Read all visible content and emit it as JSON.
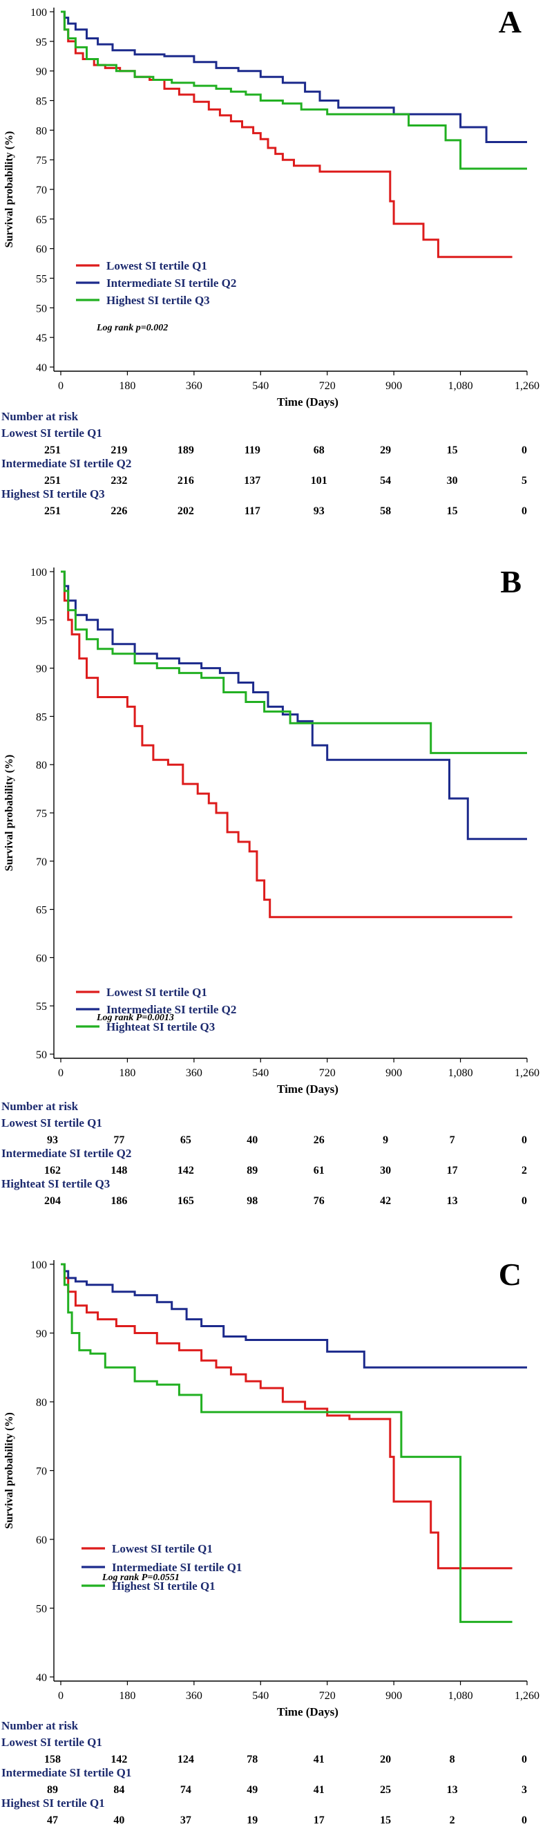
{
  "colors": {
    "low": "#dd1c1c",
    "mid": "#1c2a8c",
    "high": "#22b022",
    "navy": "#1c2a6e"
  },
  "chart_data": [
    {
      "type": "line",
      "panel_label": "A",
      "ylabel": "Survival probability (%)",
      "xlabel": "Time (Days)",
      "xlim": [
        0,
        1260
      ],
      "ylim": [
        40,
        100
      ],
      "xticks": [
        0,
        180,
        360,
        540,
        720,
        900,
        1080,
        1260
      ],
      "xtick_labels": [
        "0",
        "180",
        "360",
        "540",
        "720",
        "900",
        "1,080",
        "1,260"
      ],
      "yticks": [
        40,
        45,
        50,
        55,
        60,
        65,
        70,
        75,
        80,
        85,
        90,
        95,
        100
      ],
      "annotation": "Log rank p=0.002",
      "series": [
        {
          "name": "Lowest SI tertile Q1",
          "color_key": "low",
          "x": [
            0,
            10,
            20,
            40,
            60,
            90,
            120,
            160,
            200,
            240,
            280,
            320,
            360,
            400,
            430,
            460,
            490,
            520,
            540,
            560,
            580,
            600,
            630,
            660,
            700,
            750,
            800,
            850,
            880,
            890,
            900,
            950,
            980,
            1000,
            1020,
            1220
          ],
          "y": [
            100,
            97,
            95,
            93,
            92,
            91,
            90.5,
            90,
            89,
            88.5,
            87,
            86,
            84.8,
            83.5,
            82.5,
            81.5,
            80.5,
            79.5,
            78.5,
            77,
            76,
            75,
            74,
            74,
            73,
            73,
            73,
            73,
            73,
            68,
            64.2,
            64.2,
            61.5,
            61.5,
            58.6,
            58.6
          ]
        },
        {
          "name": "Intermediate SI tertile Q2",
          "color_key": "mid",
          "x": [
            0,
            10,
            20,
            40,
            70,
            100,
            140,
            200,
            280,
            360,
            420,
            480,
            540,
            600,
            660,
            700,
            750,
            900,
            1000,
            1080,
            1150,
            1260
          ],
          "y": [
            100,
            99,
            98,
            97,
            95.5,
            94.5,
            93.5,
            92.8,
            92.5,
            91.5,
            90.5,
            90,
            89,
            88,
            86.5,
            85,
            83.8,
            82.7,
            82.7,
            80.5,
            78,
            78
          ]
        },
        {
          "name": "Highest SI tertile Q3",
          "color_key": "high",
          "x": [
            0,
            10,
            20,
            40,
            70,
            100,
            150,
            200,
            250,
            300,
            360,
            420,
            460,
            500,
            540,
            600,
            650,
            720,
            800,
            900,
            940,
            1000,
            1040,
            1080,
            1260
          ],
          "y": [
            100,
            97,
            95.5,
            94,
            92,
            91,
            90,
            89,
            88.5,
            88,
            87.5,
            87,
            86.5,
            86,
            85,
            84.5,
            83.5,
            82.7,
            82.7,
            82.7,
            80.8,
            80.8,
            78.3,
            73.5,
            73.5
          ]
        }
      ],
      "risk_table": {
        "title": "Number at risk",
        "rows": [
          {
            "label": "Lowest SI tertile Q1",
            "values": [
              "251",
              "219",
              "189",
              "119",
              "68",
              "29",
              "15",
              "0"
            ]
          },
          {
            "label": "Intermediate SI tertile Q2",
            "values": [
              "251",
              "232",
              "216",
              "137",
              "101",
              "54",
              "30",
              "5"
            ]
          },
          {
            "label": "Highest SI tertile Q3",
            "values": [
              "251",
              "226",
              "202",
              "117",
              "93",
              "58",
              "15",
              "0"
            ]
          }
        ]
      }
    },
    {
      "type": "line",
      "panel_label": "B",
      "ylabel": "Survival probability (%)",
      "xlabel": "Time (Days)",
      "xlim": [
        0,
        1260
      ],
      "ylim": [
        50,
        100
      ],
      "xticks": [
        0,
        180,
        360,
        540,
        720,
        900,
        1080,
        1260
      ],
      "xtick_labels": [
        "0",
        "180",
        "360",
        "540",
        "720",
        "900",
        "1,080",
        "1,260"
      ],
      "yticks": [
        50,
        55,
        60,
        65,
        70,
        75,
        80,
        85,
        90,
        95,
        100
      ],
      "annotation": "Log rank P=0.0013",
      "series": [
        {
          "name": "Lowest SI tertile Q1",
          "color_key": "low",
          "x": [
            0,
            10,
            20,
            30,
            50,
            70,
            100,
            150,
            180,
            200,
            220,
            250,
            290,
            330,
            370,
            400,
            420,
            450,
            480,
            510,
            530,
            550,
            565,
            580,
            1220
          ],
          "y": [
            100,
            97,
            95,
            93.5,
            91,
            89,
            87,
            87,
            86,
            84,
            82,
            80.5,
            80,
            78,
            77,
            76,
            75,
            73,
            72,
            71,
            68,
            66,
            64.2,
            64.2,
            64.2
          ]
        },
        {
          "name": "Intermediate SI tertile Q2",
          "color_key": "mid",
          "x": [
            0,
            10,
            20,
            40,
            70,
            100,
            140,
            200,
            260,
            320,
            380,
            430,
            480,
            520,
            560,
            600,
            640,
            680,
            720,
            900,
            1000,
            1050,
            1080,
            1100,
            1260
          ],
          "y": [
            100,
            98.5,
            97,
            95.5,
            95,
            94,
            92.5,
            91.5,
            91,
            90.5,
            90,
            89.5,
            88.5,
            87.5,
            86,
            85.2,
            84.5,
            82,
            80.5,
            80.5,
            80.5,
            76.5,
            76.5,
            72.3,
            72.3
          ]
        },
        {
          "name": "Highteat SI tertile Q3",
          "color_key": "high",
          "x": [
            0,
            10,
            20,
            40,
            70,
            100,
            140,
            200,
            260,
            320,
            380,
            440,
            500,
            550,
            620,
            700,
            800,
            900,
            960,
            1000,
            1100,
            1260
          ],
          "y": [
            100,
            98,
            96,
            94,
            93,
            92,
            91.5,
            90.5,
            90,
            89.5,
            89,
            87.5,
            86.5,
            85.5,
            84.3,
            84.3,
            84.3,
            84.3,
            84.3,
            81.2,
            81.2,
            81.2
          ]
        }
      ],
      "risk_table": {
        "title": "Number at risk",
        "rows": [
          {
            "label": "Lowest SI tertile Q1",
            "values": [
              "93",
              "77",
              "65",
              "40",
              "26",
              "9",
              "7",
              "0"
            ]
          },
          {
            "label": "Intermediate SI tertile Q2",
            "values": [
              "162",
              "148",
              "142",
              "89",
              "61",
              "30",
              "17",
              "2"
            ]
          },
          {
            "label": "Highteat SI tertile Q3",
            "values": [
              "204",
              "186",
              "165",
              "98",
              "76",
              "42",
              "13",
              "0"
            ]
          }
        ]
      }
    },
    {
      "type": "line",
      "panel_label": "C",
      "ylabel": "Survival probability (%)",
      "xlabel": "Time (Days)",
      "xlim": [
        0,
        1260
      ],
      "ylim": [
        40,
        100
      ],
      "xticks": [
        0,
        180,
        360,
        540,
        720,
        900,
        1080,
        1260
      ],
      "xtick_labels": [
        "0",
        "180",
        "360",
        "540",
        "720",
        "900",
        "1,080",
        "1,260"
      ],
      "yticks": [
        40,
        50,
        60,
        70,
        80,
        90,
        100
      ],
      "annotation": "Log rank P=0.0551",
      "series": [
        {
          "name": "Lowest SI tertile Q1",
          "color_key": "low",
          "x": [
            0,
            10,
            20,
            40,
            70,
            100,
            150,
            200,
            260,
            320,
            380,
            420,
            460,
            500,
            540,
            600,
            660,
            720,
            780,
            820,
            880,
            890,
            900,
            960,
            1000,
            1020,
            1220
          ],
          "y": [
            100,
            98,
            96,
            94,
            93,
            92,
            91,
            90,
            88.5,
            87.5,
            86,
            85,
            84,
            83,
            82,
            80,
            79,
            78,
            77.5,
            77.5,
            77.5,
            72,
            65.5,
            65.5,
            61,
            55.8,
            55.8
          ]
        },
        {
          "name": "Intermediate SI tertile Q1",
          "color_key": "mid",
          "x": [
            0,
            10,
            20,
            40,
            70,
            140,
            200,
            260,
            300,
            340,
            380,
            440,
            500,
            560,
            620,
            660,
            720,
            780,
            820,
            900,
            1080,
            1260
          ],
          "y": [
            100,
            99,
            98,
            97.5,
            97,
            96,
            95.5,
            94.5,
            93.5,
            92,
            91,
            89.5,
            89,
            89,
            89,
            89,
            87.3,
            87.3,
            85,
            85,
            85,
            85
          ]
        },
        {
          "name": "Highest SI tertile Q1",
          "color_key": "high",
          "x": [
            0,
            10,
            20,
            30,
            50,
            80,
            120,
            160,
            200,
            260,
            320,
            380,
            440,
            520,
            600,
            700,
            800,
            880,
            920,
            1000,
            1060,
            1080,
            1220
          ],
          "y": [
            100,
            97,
            93,
            90,
            87.5,
            87,
            85,
            85,
            83,
            82.5,
            81,
            78.5,
            78.5,
            78.5,
            78.5,
            78.5,
            78.5,
            78.5,
            72,
            72,
            72,
            48,
            48
          ]
        }
      ],
      "risk_table": {
        "title": "Number at risk",
        "rows": [
          {
            "label": "Lowest SI tertile Q1",
            "values": [
              "158",
              "142",
              "124",
              "78",
              "41",
              "20",
              "8",
              "0"
            ]
          },
          {
            "label": "Intermediate SI tertile Q1",
            "values": [
              "89",
              "84",
              "74",
              "49",
              "41",
              "25",
              "13",
              "3"
            ]
          },
          {
            "label": "Highest SI tertile Q1",
            "values": [
              "47",
              "40",
              "37",
              "19",
              "17",
              "15",
              "2",
              "0"
            ]
          }
        ]
      }
    }
  ]
}
